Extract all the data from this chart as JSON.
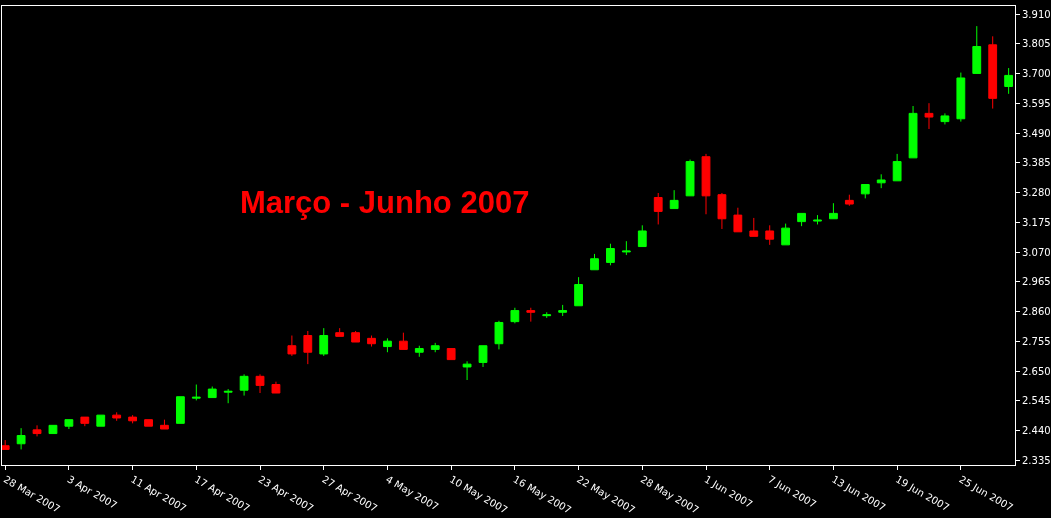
{
  "chart_data": {
    "type": "candlestick",
    "title": "Março - Junho 2007",
    "categories": [
      "28 Mar 2007",
      null,
      null,
      null,
      "3 Apr 2007",
      null,
      null,
      null,
      "11 Apr 2007",
      null,
      null,
      null,
      "17 Apr 2007",
      null,
      null,
      null,
      "23 Apr 2007",
      null,
      null,
      null,
      "27 Apr 2007",
      null,
      null,
      null,
      "4 May 2007",
      null,
      null,
      null,
      "10 May 2007",
      null,
      null,
      null,
      "16 May 2007",
      null,
      null,
      null,
      "22 May 2007",
      null,
      null,
      null,
      "28 May 2007",
      null,
      null,
      null,
      "1 Jun 2007",
      null,
      null,
      null,
      "7 Jun 2007",
      null,
      null,
      null,
      "13 Jun 2007",
      null,
      null,
      null,
      "19 Jun 2007",
      null,
      null,
      null,
      "25 Jun 2007",
      null,
      null,
      null
    ],
    "ohlc": [
      [
        2.387,
        2.407,
        2.374,
        2.374
      ],
      [
        2.394,
        2.449,
        2.374,
        2.423
      ],
      [
        2.443,
        2.459,
        2.42,
        2.43
      ],
      [
        2.43,
        2.459,
        2.43,
        2.459
      ],
      [
        2.456,
        2.479,
        2.446,
        2.479
      ],
      [
        2.488,
        2.488,
        2.456,
        2.466
      ],
      [
        2.456,
        2.495,
        2.456,
        2.495
      ],
      [
        2.495,
        2.505,
        2.475,
        2.485
      ],
      [
        2.488,
        2.495,
        2.466,
        2.475
      ],
      [
        2.479,
        2.479,
        2.456,
        2.456
      ],
      [
        2.459,
        2.479,
        2.446,
        2.446
      ],
      [
        2.466,
        2.56,
        2.466,
        2.56
      ],
      [
        2.555,
        2.603,
        2.547,
        2.558
      ],
      [
        2.557,
        2.596,
        2.557,
        2.587
      ],
      [
        2.576,
        2.587,
        2.537,
        2.579
      ],
      [
        2.583,
        2.639,
        2.564,
        2.632
      ],
      [
        2.632,
        2.639,
        2.573,
        2.6
      ],
      [
        2.603,
        2.613,
        2.573,
        2.573
      ],
      [
        2.74,
        2.776,
        2.704,
        2.711
      ],
      [
        2.776,
        2.792,
        2.675,
        2.717
      ],
      [
        2.711,
        2.802,
        2.704,
        2.776
      ],
      [
        2.786,
        2.802,
        2.773,
        2.773
      ],
      [
        2.786,
        2.792,
        2.753,
        2.753
      ],
      [
        2.766,
        2.776,
        2.737,
        2.747
      ],
      [
        2.737,
        2.766,
        2.717,
        2.756
      ],
      [
        2.756,
        2.786,
        2.727,
        2.727
      ],
      [
        2.717,
        2.74,
        2.701,
        2.73
      ],
      [
        2.727,
        2.75,
        2.717,
        2.74
      ],
      [
        2.73,
        2.73,
        2.691,
        2.691
      ],
      [
        2.665,
        2.685,
        2.619,
        2.675
      ],
      [
        2.681,
        2.74,
        2.665,
        2.74
      ],
      [
        2.747,
        2.828,
        2.727,
        2.822
      ],
      [
        2.825,
        2.874,
        2.819,
        2.864
      ],
      [
        2.864,
        2.874,
        2.825,
        2.858
      ],
      [
        2.846,
        2.858,
        2.838,
        2.849
      ],
      [
        2.858,
        2.884,
        2.845,
        2.864
      ],
      [
        2.881,
        2.982,
        2.881,
        2.956
      ],
      [
        3.008,
        3.064,
        3.008,
        3.047
      ],
      [
        3.034,
        3.1,
        3.024,
        3.083
      ],
      [
        3.071,
        3.109,
        3.06,
        3.074
      ],
      [
        3.09,
        3.165,
        3.09,
        3.145
      ],
      [
        3.263,
        3.279,
        3.168,
        3.214
      ],
      [
        3.224,
        3.289,
        3.224,
        3.253
      ],
      [
        3.269,
        3.397,
        3.269,
        3.39
      ],
      [
        3.407,
        3.417,
        3.204,
        3.269
      ],
      [
        3.273,
        3.279,
        3.152,
        3.188
      ],
      [
        3.201,
        3.227,
        3.142,
        3.142
      ],
      [
        3.145,
        3.191,
        3.126,
        3.126
      ],
      [
        3.145,
        3.165,
        3.096,
        3.116
      ],
      [
        3.096,
        3.171,
        3.096,
        3.155
      ],
      [
        3.178,
        3.207,
        3.162,
        3.207
      ],
      [
        3.18,
        3.201,
        3.168,
        3.183
      ],
      [
        3.188,
        3.243,
        3.188,
        3.207
      ],
      [
        3.253,
        3.273,
        3.234,
        3.24
      ],
      [
        3.276,
        3.309,
        3.26,
        3.309
      ],
      [
        3.315,
        3.345,
        3.296,
        3.325
      ],
      [
        3.322,
        3.417,
        3.322,
        3.39
      ],
      [
        3.403,
        3.586,
        3.403,
        3.56
      ],
      [
        3.56,
        3.596,
        3.505,
        3.547
      ],
      [
        3.531,
        3.56,
        3.521,
        3.551
      ],
      [
        3.541,
        3.704,
        3.531,
        3.685
      ],
      [
        3.701,
        3.868,
        3.701,
        3.796
      ],
      [
        3.802,
        3.832,
        3.577,
        3.613
      ],
      [
        3.655,
        3.72,
        3.629,
        3.694
      ]
    ],
    "colors": [
      "#ff0000",
      "#00ff00",
      "#ff0000",
      "#00ff00",
      "#00ff00",
      "#ff0000",
      "#00ff00",
      "#ff0000",
      "#ff0000",
      "#ff0000",
      "#ff0000",
      "#00ff00",
      "#00ff00",
      "#00ff00",
      "#00ff00",
      "#00ff00",
      "#ff0000",
      "#ff0000",
      "#ff0000",
      "#ff0000",
      "#00ff00",
      "#ff0000",
      "#ff0000",
      "#ff0000",
      "#00ff00",
      "#ff0000",
      "#00ff00",
      "#00ff00",
      "#ff0000",
      "#00ff00",
      "#00ff00",
      "#00ff00",
      "#00ff00",
      "#ff0000",
      "#00ff00",
      "#00ff00",
      "#00ff00",
      "#00ff00",
      "#00ff00",
      "#00ff00",
      "#00ff00",
      "#ff0000",
      "#00ff00",
      "#00ff00",
      "#ff0000",
      "#ff0000",
      "#ff0000",
      "#ff0000",
      "#ff0000",
      "#00ff00",
      "#00ff00",
      "#00ff00",
      "#00ff00",
      "#ff0000",
      "#00ff00",
      "#00ff00",
      "#00ff00",
      "#00ff00",
      "#ff0000",
      "#00ff00",
      "#00ff00",
      "#00ff00",
      "#ff0000",
      "#00ff00"
    ],
    "ylim": [
      2.319,
      3.939
    ],
    "yticks": [
      {
        "value": 2.335,
        "label": "2.335"
      },
      {
        "value": 2.44,
        "label": "2.440"
      },
      {
        "value": 2.545,
        "label": "2.545"
      },
      {
        "value": 2.65,
        "label": "2.650"
      },
      {
        "value": 2.755,
        "label": "2.755"
      },
      {
        "value": 2.86,
        "label": "2.860"
      },
      {
        "value": 2.965,
        "label": "2.965"
      },
      {
        "value": 3.07,
        "label": "3.070"
      },
      {
        "value": 3.175,
        "label": "3.175"
      },
      {
        "value": 3.28,
        "label": "3.280"
      },
      {
        "value": 3.385,
        "label": "3.385"
      },
      {
        "value": 3.49,
        "label": "3.490"
      },
      {
        "value": 3.595,
        "label": "3.595"
      },
      {
        "value": 3.7,
        "label": "3.700"
      },
      {
        "value": 3.805,
        "label": "3.805"
      },
      {
        "value": 3.91,
        "label": "3.910"
      }
    ]
  }
}
